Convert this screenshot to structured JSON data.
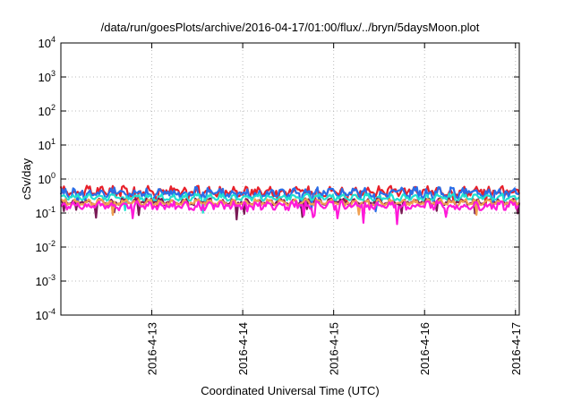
{
  "chart_data": {
    "type": "line",
    "title": "/data/run/goesPlots/archive/2016-04-17/01:00/flux/../bryn/5daysMoon.plot",
    "xlabel": "Coordinated Universal Time (UTC)",
    "ylabel": "cSv/day",
    "yscale": "log",
    "ylim_exp": [
      -4,
      4
    ],
    "y_tick_exponents": [
      -4,
      -3,
      -2,
      -1,
      0,
      1,
      2,
      3,
      4
    ],
    "x_ticks": [
      {
        "label": "2016-4-13",
        "day": 1
      },
      {
        "label": "2016-4-14",
        "day": 2
      },
      {
        "label": "2016-4-15",
        "day": 3
      },
      {
        "label": "2016-4-16",
        "day": 4
      },
      {
        "label": "2016-4-17",
        "day": 5
      }
    ],
    "x_start": "2016-04-12T00:00",
    "x_end": "2016-04-17T01:00",
    "grid": true,
    "series": [
      {
        "color": "#e8202a",
        "level": 0.45,
        "amp": 0.22
      },
      {
        "color": "#2a6ee8",
        "level": 0.4,
        "amp": 0.25
      },
      {
        "color": "#20e0d0",
        "level": 0.3,
        "amp": 0.12
      },
      {
        "color": "#7a1a55",
        "level": 0.22,
        "amp": 0.1
      },
      {
        "color": "#f0a050",
        "level": 0.21,
        "amp": 0.1
      },
      {
        "color": "#ff1ad9",
        "level": 0.17,
        "amp": 0.18
      }
    ]
  }
}
